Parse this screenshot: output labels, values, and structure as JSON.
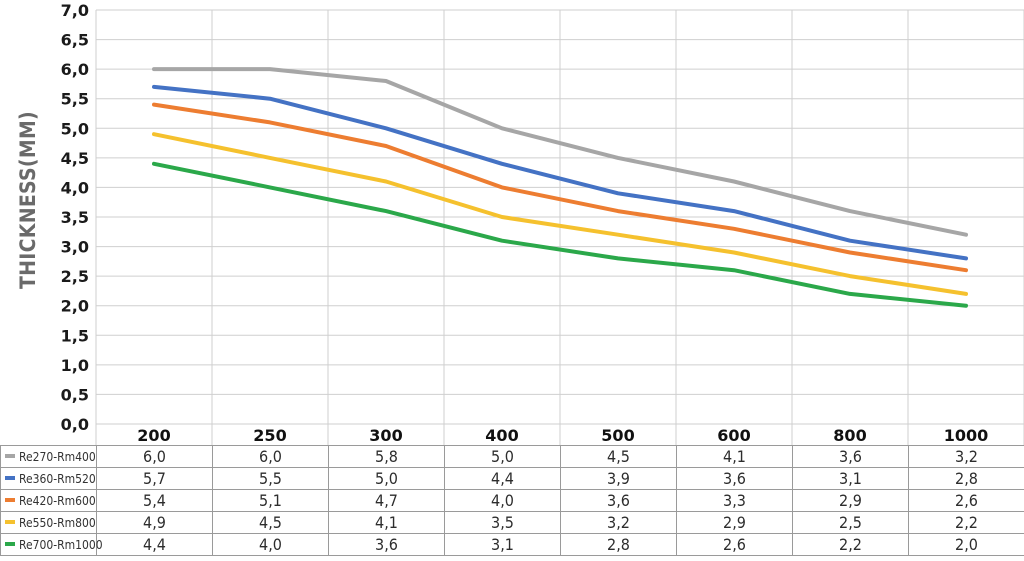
{
  "chart_data": {
    "type": "line",
    "ylabel": "THICKNESS(MM)",
    "xlabel": "",
    "title": "",
    "ylim": [
      0,
      7
    ],
    "ytick_step": 0.5,
    "y_ticks": [
      "0,0",
      "0,5",
      "1,0",
      "1,5",
      "2,0",
      "2,5",
      "3,0",
      "3,5",
      "4,0",
      "4,5",
      "5,0",
      "5,5",
      "6,0",
      "6,5",
      "7,0"
    ],
    "categories": [
      "200",
      "250",
      "300",
      "400",
      "500",
      "600",
      "800",
      "1000"
    ],
    "grid": true,
    "legend_placement": "table-below",
    "series": [
      {
        "name": "Re270-Rm400",
        "color": "#a6a6a6",
        "values": [
          6.0,
          6.0,
          5.8,
          5.0,
          4.5,
          4.1,
          3.6,
          3.2
        ],
        "labels": [
          "6,0",
          "6,0",
          "5,8",
          "5,0",
          "4,5",
          "4,1",
          "3,6",
          "3,2"
        ]
      },
      {
        "name": "Re360-Rm520",
        "color": "#4472c4",
        "values": [
          5.7,
          5.5,
          5.0,
          4.4,
          3.9,
          3.6,
          3.1,
          2.8
        ],
        "labels": [
          "5,7",
          "5,5",
          "5,0",
          "4,4",
          "3,9",
          "3,6",
          "3,1",
          "2,8"
        ]
      },
      {
        "name": "Re420-Rm600",
        "color": "#ed7d31",
        "values": [
          5.4,
          5.1,
          4.7,
          4.0,
          3.6,
          3.3,
          2.9,
          2.6
        ],
        "labels": [
          "5,4",
          "5,1",
          "4,7",
          "4,0",
          "3,6",
          "3,3",
          "2,9",
          "2,6"
        ]
      },
      {
        "name": "Re550-Rm800",
        "color": "#f5c12e",
        "values": [
          4.9,
          4.5,
          4.1,
          3.5,
          3.2,
          2.9,
          2.5,
          2.2
        ],
        "labels": [
          "4,9",
          "4,5",
          "4,1",
          "3,5",
          "3,2",
          "2,9",
          "2,5",
          "2,2"
        ]
      },
      {
        "name": "Re700-Rm1000",
        "color": "#2ba84a",
        "values": [
          4.4,
          4.0,
          3.6,
          3.1,
          2.8,
          2.6,
          2.2,
          2.0
        ],
        "labels": [
          "4,4",
          "4,0",
          "3,6",
          "3,1",
          "2,8",
          "2,6",
          "2,2",
          "2,0"
        ]
      }
    ]
  }
}
